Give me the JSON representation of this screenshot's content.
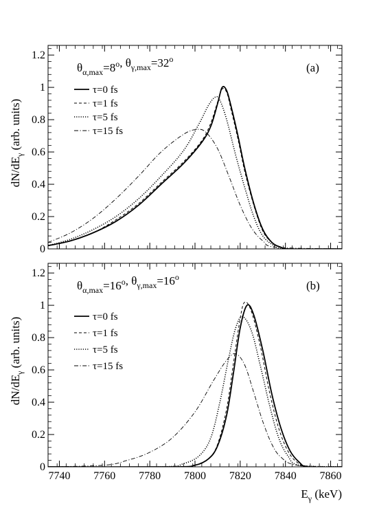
{
  "chart_data": [
    {
      "type": "line",
      "panel_label": "(a)",
      "annotation": {
        "theta_alpha": {
          "sym": "θ",
          "sub": "α,max",
          "val": "=8",
          "sup": "o"
        },
        "theta_gamma": {
          "sym": "θ",
          "sub": "γ,max",
          "val": "=32",
          "sup": "o"
        }
      },
      "xlim": [
        7735,
        7865
      ],
      "ylim": [
        0,
        1.26
      ],
      "x_ticks": [
        7740,
        7760,
        7780,
        7800,
        7820,
        7840,
        7860
      ],
      "y_ticks": [
        0,
        0.2,
        0.4,
        0.6,
        0.8,
        1,
        1.2
      ],
      "y_tick_labels": [
        "0",
        "0.2",
        "0.4",
        "0.6",
        "0.8",
        "1",
        "1.2"
      ],
      "ylabel": {
        "main": "dN/dE",
        "sub": "γ",
        "rest": " (arb. units)"
      },
      "legend_position": "top-left",
      "series": [
        {
          "name": "τ=0 fs",
          "label": {
            "sym": "τ",
            "rest": "=0 fs"
          },
          "style": "solid",
          "x": [
            7735,
            7745,
            7755,
            7765,
            7775,
            7785,
            7795,
            7803,
            7807,
            7810,
            7812,
            7814,
            7816,
            7819,
            7822,
            7826,
            7830,
            7834,
            7838,
            7842,
            7865
          ],
          "y": [
            0.02,
            0.05,
            0.1,
            0.17,
            0.27,
            0.4,
            0.53,
            0.66,
            0.76,
            0.9,
            1.0,
            0.98,
            0.88,
            0.7,
            0.5,
            0.28,
            0.12,
            0.04,
            0.01,
            0.0,
            0.0
          ]
        },
        {
          "name": "τ=1 fs",
          "label": {
            "sym": "τ",
            "rest": "=1 fs"
          },
          "style": "dashed",
          "x": [
            7735,
            7745,
            7755,
            7765,
            7775,
            7785,
            7795,
            7803,
            7807,
            7810,
            7812,
            7814,
            7816,
            7819,
            7822,
            7826,
            7830,
            7834,
            7838,
            7842,
            7865
          ],
          "y": [
            0.02,
            0.05,
            0.1,
            0.18,
            0.28,
            0.41,
            0.54,
            0.67,
            0.78,
            0.91,
            0.99,
            0.97,
            0.86,
            0.68,
            0.48,
            0.27,
            0.11,
            0.04,
            0.01,
            0.0,
            0.0
          ]
        },
        {
          "name": "τ=5 fs",
          "label": {
            "sym": "τ",
            "rest": "=5 fs"
          },
          "style": "dotted",
          "x": [
            7735,
            7745,
            7755,
            7765,
            7775,
            7785,
            7795,
            7802,
            7806,
            7809,
            7811,
            7814,
            7818,
            7822,
            7826,
            7830,
            7835,
            7840,
            7865
          ],
          "y": [
            0.02,
            0.06,
            0.12,
            0.2,
            0.31,
            0.45,
            0.61,
            0.78,
            0.89,
            0.94,
            0.92,
            0.8,
            0.58,
            0.38,
            0.2,
            0.08,
            0.02,
            0.0,
            0.0
          ]
        },
        {
          "name": "τ=15 fs",
          "label": {
            "sym": "τ",
            "rest": "=15 fs"
          },
          "style": "dashdot",
          "x": [
            7735,
            7745,
            7755,
            7765,
            7775,
            7785,
            7795,
            7801,
            7805,
            7810,
            7815,
            7820,
            7825,
            7830,
            7836,
            7865
          ],
          "y": [
            0.04,
            0.1,
            0.19,
            0.31,
            0.45,
            0.6,
            0.71,
            0.74,
            0.72,
            0.62,
            0.45,
            0.27,
            0.13,
            0.05,
            0.01,
            0.0
          ]
        }
      ]
    },
    {
      "type": "line",
      "panel_label": "(b)",
      "annotation": {
        "theta_alpha": {
          "sym": "θ",
          "sub": "α,max",
          "val": "=16",
          "sup": "o"
        },
        "theta_gamma": {
          "sym": "θ",
          "sub": "γ,max",
          "val": "=16",
          "sup": "o"
        }
      },
      "xlim": [
        7735,
        7865
      ],
      "ylim": [
        0,
        1.26
      ],
      "x_ticks": [
        7740,
        7760,
        7780,
        7800,
        7820,
        7840,
        7860
      ],
      "x_tick_labels": [
        "7740",
        "7760",
        "7780",
        "7800",
        "7820",
        "7840",
        "7860"
      ],
      "y_ticks": [
        0,
        0.2,
        0.4,
        0.6,
        0.8,
        1,
        1.2
      ],
      "y_tick_labels": [
        "0",
        "0.2",
        "0.4",
        "0.6",
        "0.8",
        "1",
        "1.2"
      ],
      "ylabel": {
        "main": "dN/dE",
        "sub": "γ",
        "rest": " (arb. units)"
      },
      "xlabel": {
        "main": "E",
        "sub": "γ",
        "rest": " (keV)"
      },
      "legend_position": "center-left",
      "series": [
        {
          "name": "τ=0 fs",
          "label": {
            "sym": "τ",
            "rest": "=0 fs"
          },
          "style": "solid",
          "x": [
            7735,
            7790,
            7800,
            7806,
            7810,
            7814,
            7817,
            7820,
            7823,
            7826,
            7830,
            7834,
            7838,
            7842,
            7846,
            7850,
            7865
          ],
          "y": [
            0.0,
            0.0,
            0.01,
            0.05,
            0.13,
            0.32,
            0.58,
            0.86,
            1.0,
            0.94,
            0.72,
            0.45,
            0.24,
            0.1,
            0.03,
            0.0,
            0.0
          ]
        },
        {
          "name": "τ=1 fs",
          "label": {
            "sym": "τ",
            "rest": "=1 fs"
          },
          "style": "dashed",
          "x": [
            7735,
            7790,
            7800,
            7806,
            7810,
            7814,
            7817,
            7820,
            7822,
            7825,
            7829,
            7833,
            7837,
            7841,
            7845,
            7850,
            7865
          ],
          "y": [
            0.0,
            0.0,
            0.01,
            0.05,
            0.14,
            0.36,
            0.64,
            0.92,
            1.02,
            0.96,
            0.74,
            0.46,
            0.24,
            0.1,
            0.03,
            0.0,
            0.0
          ]
        },
        {
          "name": "τ=5 fs",
          "label": {
            "sym": "τ",
            "rest": "=5 fs"
          },
          "style": "dotted",
          "x": [
            7735,
            7785,
            7795,
            7802,
            7807,
            7811,
            7815,
            7818,
            7821,
            7825,
            7829,
            7833,
            7837,
            7841,
            7846,
            7865
          ],
          "y": [
            0.0,
            0.0,
            0.02,
            0.07,
            0.18,
            0.4,
            0.68,
            0.86,
            0.93,
            0.84,
            0.62,
            0.38,
            0.18,
            0.07,
            0.01,
            0.0
          ]
        },
        {
          "name": "τ=15 fs",
          "label": {
            "sym": "τ",
            "rest": "=15 fs"
          },
          "style": "dashdot",
          "x": [
            7735,
            7760,
            7770,
            7780,
            7790,
            7800,
            7808,
            7814,
            7818,
            7822,
            7826,
            7830,
            7834,
            7838,
            7845,
            7865
          ],
          "y": [
            0.0,
            0.01,
            0.04,
            0.09,
            0.18,
            0.34,
            0.53,
            0.66,
            0.7,
            0.63,
            0.46,
            0.28,
            0.14,
            0.06,
            0.01,
            0.0
          ]
        }
      ]
    }
  ]
}
